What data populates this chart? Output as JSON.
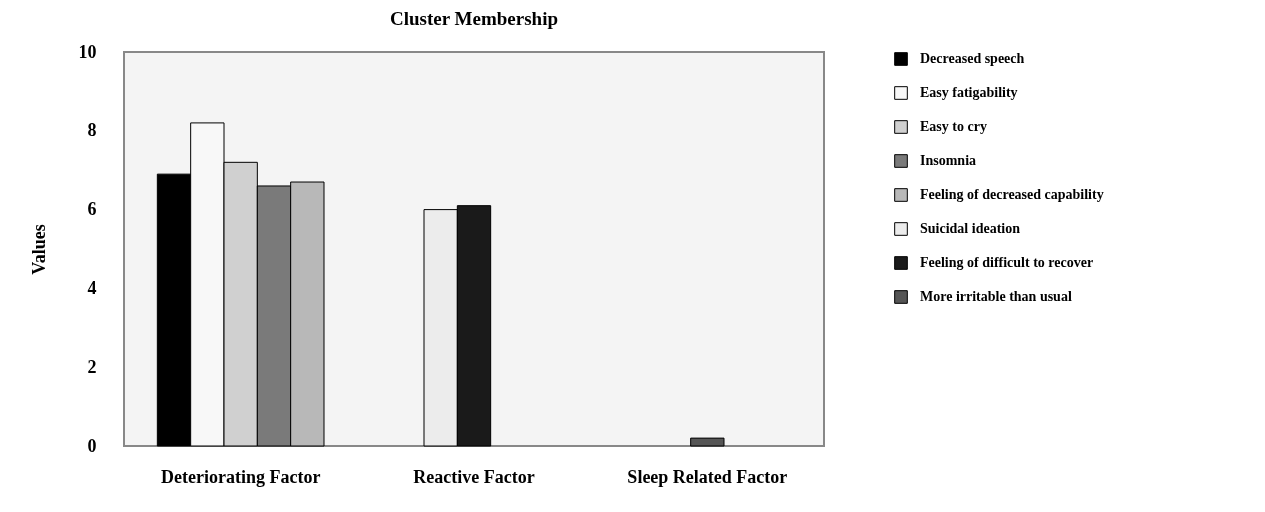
{
  "chart_data": {
    "type": "bar",
    "title": "Cluster Membership",
    "ylabel": "Values",
    "categories": [
      "Deteriorating Factor",
      "Reactive Factor",
      "Sleep Related Factor"
    ],
    "ylim": [
      0,
      10
    ],
    "yticks": [
      0,
      2,
      4,
      6,
      8,
      10
    ],
    "legend": "right",
    "series": [
      {
        "name": "Decreased speech",
        "color": "#000000",
        "values": [
          6.9,
          null,
          null
        ]
      },
      {
        "name": "Easy fatigability",
        "color": "#f8f8f8",
        "values": [
          8.2,
          null,
          null
        ]
      },
      {
        "name": "Easy to cry",
        "color": "#d0d0d0",
        "values": [
          7.2,
          null,
          null
        ]
      },
      {
        "name": "Insomnia",
        "color": "#7a7a7a",
        "values": [
          6.6,
          null,
          null
        ]
      },
      {
        "name": "Feeling of decreased capability",
        "color": "#b8b8b8",
        "values": [
          6.7,
          null,
          null
        ]
      },
      {
        "name": "Suicidal ideation",
        "color": "#ececec",
        "values": [
          null,
          6.0,
          null
        ]
      },
      {
        "name": "Feeling of difficult to recover",
        "color": "#1a1a1a",
        "values": [
          null,
          6.1,
          null
        ]
      },
      {
        "name": "More irritable than usual",
        "color": "#555555",
        "values": [
          null,
          null,
          0.2
        ]
      }
    ]
  }
}
